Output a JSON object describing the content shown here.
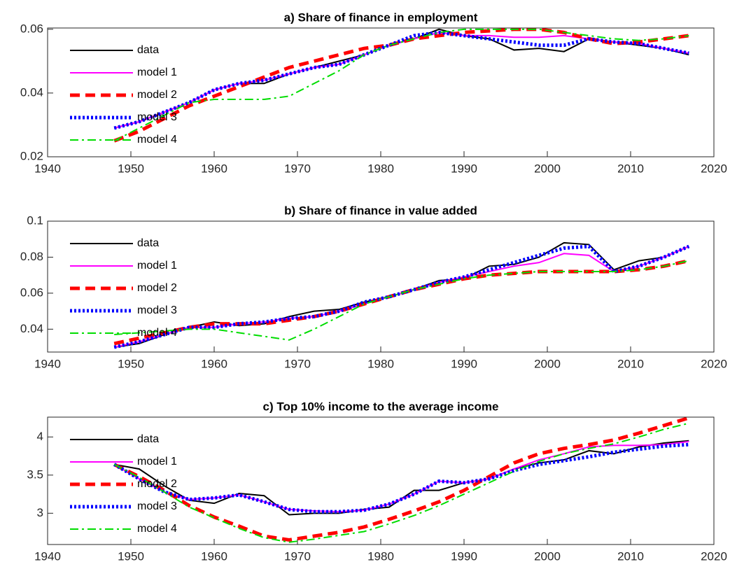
{
  "chart_data": [
    {
      "type": "line",
      "title": "a) Share of finance in employment",
      "x": [
        1948,
        1951,
        1954,
        1957,
        1960,
        1963,
        1966,
        1969,
        1972,
        1975,
        1978,
        1981,
        1984,
        1987,
        1990,
        1993,
        1996,
        1999,
        2002,
        2005,
        2008,
        2011,
        2014,
        2017
      ],
      "xlim": [
        1940,
        2020
      ],
      "xticks": [
        1940,
        1950,
        1960,
        1970,
        1980,
        1990,
        2000,
        2010,
        2020
      ],
      "ylim": [
        0.02,
        0.0604
      ],
      "yticks": [
        0.02,
        0.04,
        0.06
      ],
      "legend": "upper left",
      "series": [
        {
          "name": "data",
          "color": "#000000",
          "style": "solid",
          "values": [
            0.029,
            0.031,
            0.034,
            0.037,
            0.041,
            0.043,
            0.043,
            0.046,
            0.048,
            0.05,
            0.052,
            0.055,
            0.057,
            0.06,
            0.058,
            0.057,
            0.0535,
            0.054,
            0.053,
            0.057,
            0.056,
            0.055,
            0.054,
            0.052
          ]
        },
        {
          "name": "model 1",
          "color": "#ff00ff",
          "style": "solid",
          "values": [
            0.029,
            0.031,
            0.034,
            0.037,
            0.041,
            0.043,
            0.044,
            0.046,
            0.048,
            0.049,
            0.052,
            0.055,
            0.057,
            0.059,
            0.058,
            0.058,
            0.0575,
            0.0575,
            0.058,
            0.057,
            0.056,
            0.0555,
            0.054,
            0.0525
          ]
        },
        {
          "name": "model 2",
          "color": "#ff0000",
          "style": "dashed",
          "values": [
            0.025,
            0.028,
            0.032,
            0.036,
            0.039,
            0.042,
            0.045,
            0.048,
            0.05,
            0.052,
            0.054,
            0.055,
            0.057,
            0.058,
            0.059,
            0.0595,
            0.06,
            0.06,
            0.059,
            0.057,
            0.0555,
            0.056,
            0.057,
            0.058
          ]
        },
        {
          "name": "model 3",
          "color": "#0000ff",
          "style": "dotted",
          "values": [
            0.029,
            0.031,
            0.034,
            0.037,
            0.041,
            0.043,
            0.044,
            0.046,
            0.048,
            0.049,
            0.052,
            0.055,
            0.058,
            0.059,
            0.058,
            0.057,
            0.056,
            0.055,
            0.055,
            0.057,
            0.056,
            0.0555,
            0.054,
            0.0525
          ]
        },
        {
          "name": "model 4",
          "color": "#00dd00",
          "style": "dashdot",
          "values": [
            0.025,
            0.029,
            0.033,
            0.037,
            0.038,
            0.038,
            0.038,
            0.039,
            0.043,
            0.047,
            0.052,
            0.055,
            0.057,
            0.059,
            0.06,
            0.06,
            0.06,
            0.06,
            0.059,
            0.058,
            0.057,
            0.0565,
            0.057,
            0.058
          ]
        }
      ]
    },
    {
      "type": "line",
      "title": "b) Share of finance in value added",
      "x": [
        1948,
        1951,
        1954,
        1957,
        1960,
        1963,
        1966,
        1969,
        1972,
        1975,
        1978,
        1981,
        1984,
        1987,
        1990,
        1993,
        1996,
        1999,
        2002,
        2005,
        2008,
        2011,
        2014,
        2017
      ],
      "xlim": [
        1940,
        2020
      ],
      "xticks": [
        1940,
        1950,
        1960,
        1970,
        1980,
        1990,
        2000,
        2010,
        2020
      ],
      "ylim": [
        0.0273,
        0.1
      ],
      "yticks": [
        0.04,
        0.06,
        0.08,
        0.1
      ],
      "legend": "upper left",
      "series": [
        {
          "name": "data",
          "color": "#000000",
          "style": "solid",
          "values": [
            0.03,
            0.032,
            0.037,
            0.041,
            0.044,
            0.042,
            0.043,
            0.047,
            0.05,
            0.051,
            0.055,
            0.058,
            0.062,
            0.067,
            0.068,
            0.075,
            0.076,
            0.08,
            0.088,
            0.087,
            0.073,
            0.078,
            0.08,
            0.086
          ]
        },
        {
          "name": "model 1",
          "color": "#ff00ff",
          "style": "solid",
          "values": [
            0.03,
            0.033,
            0.037,
            0.041,
            0.041,
            0.043,
            0.044,
            0.046,
            0.047,
            0.05,
            0.054,
            0.058,
            0.062,
            0.066,
            0.069,
            0.072,
            0.075,
            0.077,
            0.082,
            0.081,
            0.072,
            0.075,
            0.08,
            0.086
          ]
        },
        {
          "name": "model 2",
          "color": "#ff0000",
          "style": "dashed",
          "values": [
            0.032,
            0.035,
            0.038,
            0.041,
            0.043,
            0.043,
            0.043,
            0.045,
            0.047,
            0.05,
            0.054,
            0.058,
            0.062,
            0.065,
            0.068,
            0.07,
            0.071,
            0.072,
            0.072,
            0.072,
            0.072,
            0.073,
            0.075,
            0.078
          ]
        },
        {
          "name": "model 3",
          "color": "#0000ff",
          "style": "dotted",
          "values": [
            0.03,
            0.033,
            0.037,
            0.041,
            0.041,
            0.043,
            0.044,
            0.046,
            0.047,
            0.05,
            0.055,
            0.058,
            0.062,
            0.066,
            0.069,
            0.073,
            0.077,
            0.081,
            0.085,
            0.086,
            0.072,
            0.075,
            0.08,
            0.086
          ]
        },
        {
          "name": "model 4",
          "color": "#00dd00",
          "style": "dashdot",
          "values": [
            0.037,
            0.038,
            0.039,
            0.04,
            0.04,
            0.038,
            0.036,
            0.034,
            0.04,
            0.047,
            0.054,
            0.058,
            0.062,
            0.065,
            0.068,
            0.07,
            0.071,
            0.072,
            0.072,
            0.072,
            0.072,
            0.073,
            0.075,
            0.078
          ]
        }
      ]
    },
    {
      "type": "line",
      "title": "c) Top 10% income to the average income",
      "x": [
        1948,
        1951,
        1954,
        1957,
        1960,
        1963,
        1966,
        1969,
        1972,
        1975,
        1978,
        1981,
        1984,
        1987,
        1990,
        1993,
        1996,
        1999,
        2002,
        2005,
        2008,
        2011,
        2014,
        2017
      ],
      "xlim": [
        1940,
        2020
      ],
      "xticks": [
        1940,
        1950,
        1960,
        1970,
        1980,
        1990,
        2000,
        2010,
        2020
      ],
      "ylim": [
        2.59,
        4.26
      ],
      "yticks": [
        3,
        3.5,
        4
      ],
      "legend": "upper left",
      "series": [
        {
          "name": "data",
          "color": "#000000",
          "style": "solid",
          "values": [
            3.64,
            3.58,
            3.36,
            3.17,
            3.13,
            3.26,
            3.23,
            2.98,
            3.0,
            3.0,
            3.05,
            3.08,
            3.3,
            3.3,
            3.4,
            3.45,
            3.58,
            3.66,
            3.7,
            3.82,
            3.78,
            3.87,
            3.92,
            3.95
          ]
        },
        {
          "name": "model 1",
          "color": "#ff00ff",
          "style": "solid",
          "values": [
            3.64,
            3.45,
            3.28,
            3.18,
            3.2,
            3.24,
            3.15,
            3.05,
            3.03,
            3.02,
            3.04,
            3.12,
            3.25,
            3.42,
            3.4,
            3.45,
            3.58,
            3.7,
            3.78,
            3.87,
            3.89,
            3.89,
            3.9,
            3.94
          ]
        },
        {
          "name": "model 2",
          "color": "#ff0000",
          "style": "dashed",
          "values": [
            3.64,
            3.48,
            3.3,
            3.1,
            2.95,
            2.83,
            2.7,
            2.65,
            2.7,
            2.75,
            2.82,
            2.92,
            3.03,
            3.15,
            3.3,
            3.48,
            3.66,
            3.78,
            3.85,
            3.9,
            3.96,
            4.05,
            4.15,
            4.25
          ]
        },
        {
          "name": "model 3",
          "color": "#0000ff",
          "style": "dotted",
          "values": [
            3.64,
            3.45,
            3.28,
            3.18,
            3.2,
            3.24,
            3.15,
            3.05,
            3.02,
            3.02,
            3.04,
            3.12,
            3.25,
            3.42,
            3.4,
            3.45,
            3.56,
            3.64,
            3.69,
            3.74,
            3.8,
            3.84,
            3.88,
            3.9
          ]
        },
        {
          "name": "model 4",
          "color": "#00dd00",
          "style": "dashdot",
          "values": [
            3.64,
            3.47,
            3.28,
            3.08,
            2.94,
            2.8,
            2.68,
            2.62,
            2.66,
            2.71,
            2.76,
            2.86,
            2.97,
            3.1,
            3.25,
            3.4,
            3.55,
            3.68,
            3.78,
            3.85,
            3.91,
            4.0,
            4.1,
            4.18
          ]
        }
      ]
    }
  ]
}
